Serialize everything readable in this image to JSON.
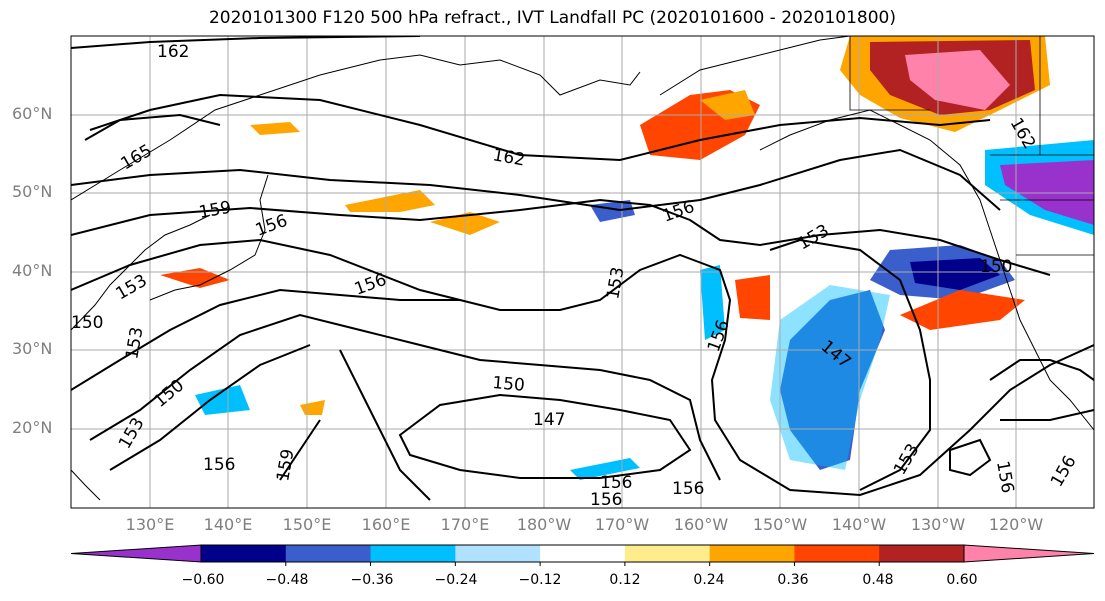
{
  "title": "2020101300 F120 500 hPa refract., IVT Landfall PC (2020101600 - 2020101800)",
  "lat_labels": [
    "60°N",
    "50°N",
    "40°N",
    "30°N",
    "20°N"
  ],
  "lon_labels": [
    "130°E",
    "140°E",
    "150°E",
    "160°E",
    "170°E",
    "180°W",
    "170°W",
    "160°W",
    "150°W",
    "140°W",
    "130°W",
    "120°W"
  ],
  "contour_labels": [
    "162",
    "165",
    "159",
    "156",
    "162",
    "156",
    "153",
    "153",
    "156",
    "150",
    "147",
    "150",
    "156",
    "153",
    "156",
    "159",
    "156",
    "156",
    "153",
    "153",
    "150",
    "147",
    "156",
    "156",
    "162",
    "153",
    "150",
    "156"
  ],
  "colorbar": {
    "colors": [
      "#9932cc",
      "#00008b",
      "#3a5fcd",
      "#00bfff",
      "#b0e2ff",
      "#ffffff",
      "#ffec8b",
      "#ffa500",
      "#ff4500",
      "#b22222",
      "#ff82ab"
    ],
    "ticks": [
      "−0.60",
      "−0.48",
      "−0.36",
      "−0.24",
      "−0.12",
      "0.12",
      "0.24",
      "0.36",
      "0.48",
      "0.60"
    ]
  }
}
